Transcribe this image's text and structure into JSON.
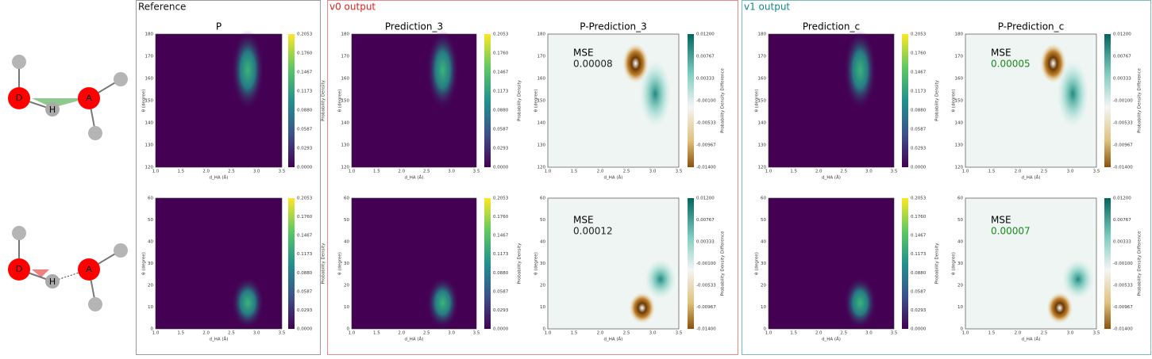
{
  "sections": [
    {
      "label": "Reference"
    },
    {
      "label": "v0 output"
    },
    {
      "label": "v1 output"
    }
  ],
  "molecule": {
    "donor": "D",
    "hydrogen": "H",
    "acceptor": "A"
  },
  "panel_titles": [
    "P",
    "Prediction_3",
    "P-Prediction_3",
    "Prediction_c",
    "P-Prediction_c"
  ],
  "mse": {
    "label": "MSE",
    "v0": [
      "0.00008",
      "0.00012"
    ],
    "v1": [
      "0.00005",
      "0.00007"
    ]
  },
  "axes": {
    "x_label": "d_HA (Å)",
    "y_label": "θ (degree)",
    "x_ticks": [
      "1.0",
      "1.5",
      "2.0",
      "2.5",
      "3.0",
      "3.5"
    ],
    "y_ticks_top": [
      "180",
      "170",
      "160",
      "150",
      "140",
      "130",
      "120"
    ],
    "y_ticks_bottom": [
      "60",
      "50",
      "40",
      "30",
      "20",
      "10",
      "0"
    ]
  },
  "colorbars": {
    "density_label": "Probability Density",
    "difference_label": "Probability Density Difference",
    "density_ticks": [
      "0.2053",
      "0.1760",
      "0.1467",
      "0.1173",
      "0.0880",
      "0.0587",
      "0.0293",
      "0.0000"
    ],
    "difference_ticks": [
      "0.01200",
      "0.00767",
      "0.00333",
      "-0.00100",
      "-0.00533",
      "-0.00967",
      "-0.01400"
    ]
  }
}
